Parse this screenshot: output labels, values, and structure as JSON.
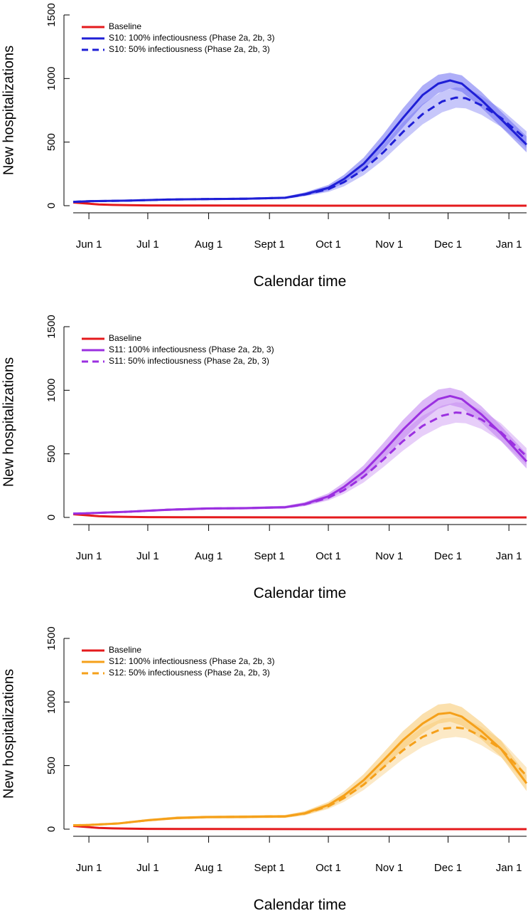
{
  "chart_data": [
    {
      "type": "line",
      "xlabel": "Calendar time",
      "ylabel": "New hospitalizations",
      "ylim": [
        0,
        1500
      ],
      "yticks": [
        0,
        500,
        1000,
        1500
      ],
      "xticks": [
        {
          "day": 0,
          "label": "Jun 1"
        },
        {
          "day": 30,
          "label": "Jul 1"
        },
        {
          "day": 61,
          "label": "Aug 1"
        },
        {
          "day": 92,
          "label": "Sept 1"
        },
        {
          "day": 122,
          "label": "Oct 1"
        },
        {
          "day": 153,
          "label": "Nov 1"
        },
        {
          "day": 183,
          "label": "Dec 1"
        },
        {
          "day": 214,
          "label": "Jan 1"
        }
      ],
      "xlim_days": [
        -8,
        223
      ],
      "grid": false,
      "legend_position": "top-left",
      "colors": {
        "baseline": "#e41a1c",
        "scenario": "#1f1fd6",
        "band": "#6b6bf2"
      },
      "series": [
        {
          "name": "Baseline",
          "style": "solid",
          "color": "#e41a1c",
          "x": [
            -8,
            -2,
            5,
            12,
            20,
            30,
            60,
            120,
            223
          ],
          "y": [
            25,
            18,
            10,
            6,
            4,
            2,
            1,
            0,
            0
          ]
        },
        {
          "name": "S10: 100% infectiousness (Phase 2a, 2b, 3)",
          "style": "solid",
          "color": "#1f1fd6",
          "x": [
            -8,
            0,
            20,
            40,
            60,
            80,
            100,
            110,
            122,
            130,
            140,
            150,
            160,
            170,
            178,
            184,
            190,
            200,
            210,
            223
          ],
          "y": [
            30,
            35,
            40,
            48,
            52,
            55,
            62,
            90,
            140,
            210,
            330,
            500,
            690,
            870,
            960,
            985,
            960,
            830,
            680,
            480
          ],
          "lower": [
            25,
            30,
            34,
            41,
            45,
            47,
            53,
            77,
            118,
            178,
            285,
            440,
            615,
            790,
            885,
            920,
            895,
            770,
            620,
            420
          ],
          "upper": [
            36,
            41,
            47,
            55,
            60,
            63,
            71,
            104,
            163,
            243,
            378,
            562,
            765,
            945,
            1030,
            1045,
            1025,
            895,
            740,
            545
          ]
        },
        {
          "name": "S10: 50% infectiousness (Phase 2a, 2b, 3)",
          "style": "dashed",
          "color": "#1f1fd6",
          "x": [
            -8,
            0,
            20,
            40,
            60,
            80,
            100,
            110,
            122,
            130,
            140,
            150,
            160,
            170,
            180,
            187,
            192,
            200,
            210,
            223
          ],
          "y": [
            30,
            35,
            40,
            48,
            52,
            55,
            62,
            88,
            130,
            185,
            285,
            420,
            580,
            720,
            820,
            850,
            845,
            790,
            690,
            520
          ],
          "lower": [
            25,
            30,
            34,
            41,
            45,
            47,
            53,
            75,
            108,
            152,
            240,
            360,
            505,
            640,
            735,
            770,
            765,
            715,
            620,
            455
          ],
          "upper": [
            36,
            41,
            47,
            55,
            60,
            63,
            71,
            102,
            152,
            218,
            330,
            480,
            655,
            800,
            900,
            930,
            925,
            865,
            760,
            585
          ]
        }
      ]
    },
    {
      "type": "line",
      "xlabel": "Calendar time",
      "ylabel": "New hospitalizations",
      "ylim": [
        0,
        1500
      ],
      "yticks": [
        0,
        500,
        1000,
        1500
      ],
      "xticks": [
        {
          "day": 0,
          "label": "Jun 1"
        },
        {
          "day": 30,
          "label": "Jul 1"
        },
        {
          "day": 61,
          "label": "Aug 1"
        },
        {
          "day": 92,
          "label": "Sept 1"
        },
        {
          "day": 122,
          "label": "Oct 1"
        },
        {
          "day": 153,
          "label": "Nov 1"
        },
        {
          "day": 183,
          "label": "Dec 1"
        },
        {
          "day": 214,
          "label": "Jan 1"
        }
      ],
      "xlim_days": [
        -8,
        223
      ],
      "grid": false,
      "legend_position": "top-left",
      "colors": {
        "baseline": "#e41a1c",
        "scenario": "#9b30e0",
        "band": "#c07ef0"
      },
      "series": [
        {
          "name": "Baseline",
          "style": "solid",
          "color": "#e41a1c",
          "x": [
            -8,
            -2,
            5,
            12,
            20,
            30,
            60,
            120,
            223
          ],
          "y": [
            25,
            18,
            10,
            6,
            4,
            2,
            1,
            0,
            0
          ]
        },
        {
          "name": "S11: 100% infectiousness (Phase 2a, 2b, 3)",
          "style": "solid",
          "color": "#9b30e0",
          "x": [
            -8,
            0,
            20,
            40,
            60,
            80,
            100,
            110,
            122,
            130,
            140,
            150,
            160,
            170,
            178,
            184,
            190,
            200,
            210,
            223
          ],
          "y": [
            30,
            33,
            45,
            60,
            70,
            73,
            80,
            105,
            165,
            240,
            360,
            520,
            690,
            840,
            930,
            955,
            930,
            810,
            660,
            440
          ],
          "lower": [
            25,
            28,
            38,
            52,
            61,
            64,
            70,
            91,
            142,
            207,
            312,
            458,
            615,
            760,
            855,
            885,
            860,
            745,
            600,
            385
          ],
          "upper": [
            36,
            39,
            52,
            69,
            80,
            83,
            91,
            120,
            190,
            275,
            410,
            585,
            765,
            920,
            1005,
            1020,
            995,
            875,
            720,
            500
          ]
        },
        {
          "name": "S11: 50% infectiousness (Phase 2a, 2b, 3)",
          "style": "dashed",
          "color": "#9b30e0",
          "x": [
            -8,
            0,
            20,
            40,
            60,
            80,
            100,
            110,
            122,
            130,
            140,
            150,
            160,
            170,
            180,
            187,
            192,
            200,
            210,
            223
          ],
          "y": [
            30,
            33,
            45,
            60,
            70,
            73,
            80,
            103,
            155,
            215,
            320,
            455,
            600,
            720,
            800,
            825,
            820,
            770,
            670,
            480
          ],
          "lower": [
            25,
            28,
            38,
            52,
            61,
            64,
            70,
            89,
            133,
            185,
            275,
            395,
            525,
            640,
            720,
            745,
            740,
            695,
            600,
            415
          ],
          "upper": [
            36,
            39,
            52,
            69,
            80,
            83,
            91,
            118,
            178,
            248,
            368,
            515,
            675,
            800,
            880,
            905,
            900,
            845,
            740,
            545
          ]
        }
      ]
    },
    {
      "type": "line",
      "xlabel": "Calendar time",
      "ylabel": "New hospitalizations",
      "ylim": [
        0,
        1500
      ],
      "yticks": [
        0,
        500,
        1000,
        1500
      ],
      "xticks": [
        {
          "day": 0,
          "label": "Jun 1"
        },
        {
          "day": 30,
          "label": "Jul 1"
        },
        {
          "day": 61,
          "label": "Aug 1"
        },
        {
          "day": 92,
          "label": "Sept 1"
        },
        {
          "day": 122,
          "label": "Oct 1"
        },
        {
          "day": 153,
          "label": "Nov 1"
        },
        {
          "day": 183,
          "label": "Dec 1"
        },
        {
          "day": 214,
          "label": "Jan 1"
        }
      ],
      "xlim_days": [
        -8,
        223
      ],
      "grid": false,
      "legend_position": "top-left",
      "colors": {
        "baseline": "#e41a1c",
        "scenario": "#f5a01a",
        "band": "#f8c66a"
      },
      "series": [
        {
          "name": "Baseline",
          "style": "solid",
          "color": "#e41a1c",
          "x": [
            -8,
            -2,
            5,
            12,
            20,
            30,
            60,
            120,
            223
          ],
          "y": [
            25,
            18,
            10,
            6,
            4,
            2,
            1,
            0,
            0
          ]
        },
        {
          "name": "S12: 100% infectiousness (Phase 2a, 2b, 3)",
          "style": "solid",
          "color": "#f5a01a",
          "x": [
            -8,
            0,
            15,
            30,
            45,
            60,
            80,
            100,
            110,
            122,
            130,
            140,
            150,
            160,
            170,
            178,
            184,
            190,
            200,
            210,
            223
          ],
          "y": [
            30,
            33,
            45,
            70,
            88,
            95,
            97,
            100,
            125,
            190,
            265,
            385,
            540,
            700,
            830,
            905,
            915,
            885,
            770,
            630,
            360
          ],
          "lower": [
            25,
            28,
            38,
            61,
            78,
            84,
            86,
            89,
            110,
            167,
            233,
            340,
            480,
            628,
            752,
            830,
            845,
            815,
            705,
            570,
            300
          ],
          "upper": [
            36,
            39,
            52,
            80,
            99,
            106,
            109,
            112,
            141,
            214,
            298,
            432,
            600,
            770,
            905,
            980,
            990,
            960,
            840,
            695,
            425
          ]
        },
        {
          "name": "S12: 50% infectiousness (Phase 2a, 2b, 3)",
          "style": "dashed",
          "color": "#f5a01a",
          "x": [
            -8,
            0,
            15,
            30,
            45,
            60,
            80,
            100,
            110,
            122,
            130,
            140,
            150,
            160,
            170,
            180,
            187,
            192,
            200,
            210,
            223
          ],
          "y": [
            30,
            33,
            45,
            70,
            88,
            95,
            97,
            100,
            123,
            180,
            245,
            350,
            485,
            620,
            725,
            790,
            800,
            790,
            730,
            630,
            420
          ],
          "lower": [
            25,
            28,
            38,
            61,
            78,
            84,
            86,
            89,
            108,
            158,
            215,
            308,
            428,
            550,
            648,
            712,
            725,
            715,
            660,
            565,
            360
          ],
          "upper": [
            36,
            39,
            52,
            80,
            99,
            106,
            109,
            112,
            138,
            203,
            276,
            393,
            542,
            690,
            802,
            870,
            878,
            868,
            805,
            700,
            485
          ]
        }
      ]
    }
  ]
}
